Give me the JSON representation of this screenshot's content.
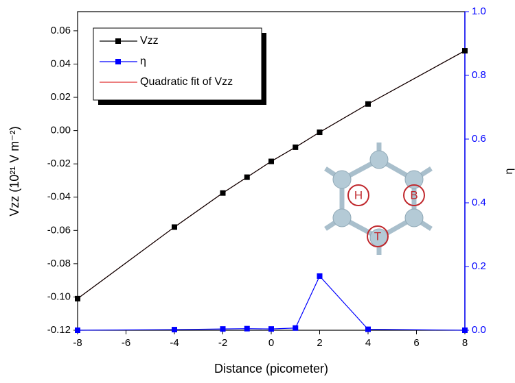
{
  "chart_data": {
    "type": "line",
    "x_label": "Distance (picometer)",
    "y_label": "Vzz (10²¹ V m⁻²)",
    "y2_label": "η",
    "x": [
      -8,
      -4,
      -2,
      -1,
      0,
      1,
      2,
      4,
      8
    ],
    "series": [
      {
        "name": "Vzz",
        "color": "#000000",
        "marker": "square",
        "axis": "y",
        "values": [
          -0.101,
          -0.058,
          -0.0375,
          -0.028,
          -0.0185,
          -0.01,
          -0.001,
          0.016,
          0.048
        ]
      },
      {
        "name": "η",
        "color": "#0000ff",
        "marker": "square",
        "axis": "y2",
        "values": [
          0,
          0.002,
          0.004,
          0.005,
          0.004,
          0.007,
          0.17,
          0.003,
          0
        ]
      },
      {
        "name": "Quadratic fit of Vzz",
        "color": "#e03030",
        "marker": null,
        "axis": "y",
        "values": [
          -0.101,
          -0.058,
          -0.0375,
          -0.028,
          -0.0185,
          -0.01,
          -0.001,
          0.016,
          0.048
        ]
      }
    ],
    "xlim": [
      -8,
      8
    ],
    "xticks": [
      -8,
      -6,
      -4,
      -2,
      0,
      2,
      4,
      6,
      8
    ],
    "ylim": [
      -0.12,
      0.0715
    ],
    "yticks": [
      {
        "value": -0.12,
        "label": "-0.12"
      },
      {
        "value": -0.1,
        "label": "-0.10"
      },
      -0.08,
      -0.06,
      -0.04,
      -0.02,
      {
        "value": 0,
        "label": "0.00"
      },
      0.02,
      0.04,
      0.06
    ],
    "y2lim": [
      0,
      1
    ],
    "y2ticks": [
      {
        "value": 0,
        "label": "0.0"
      },
      0.2,
      0.4,
      0.6,
      0.8,
      {
        "value": 1,
        "label": "1.0"
      }
    ],
    "y2_color": "#0000ff",
    "inset_labels": [
      "H",
      "B",
      "T"
    ]
  }
}
